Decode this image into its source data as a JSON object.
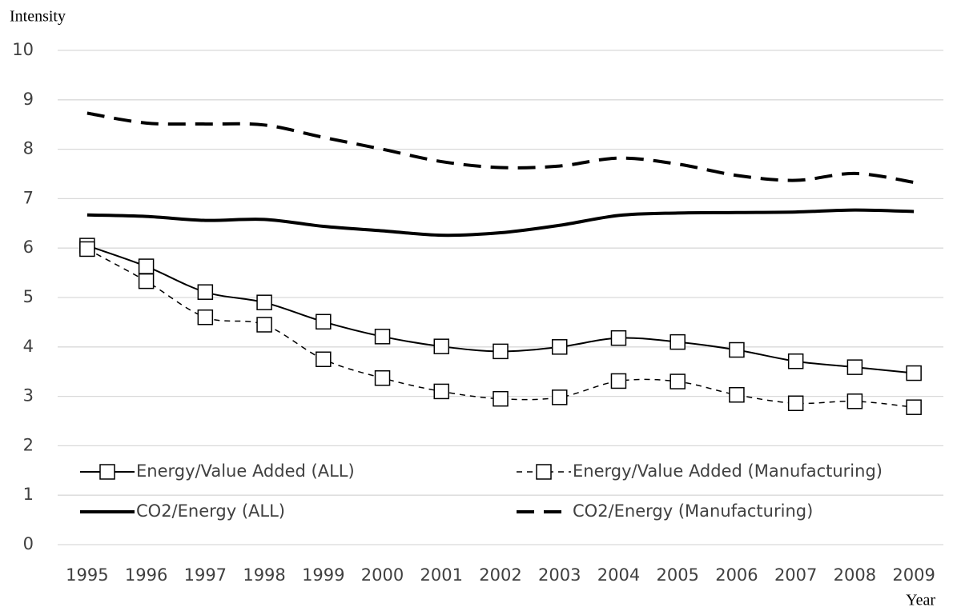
{
  "chart_data": {
    "type": "line",
    "ylabel": "Intensity",
    "xlabel": "Year",
    "categories": [
      "1995",
      "1996",
      "1997",
      "1998",
      "1999",
      "2000",
      "2001",
      "2002",
      "2003",
      "2004",
      "2005",
      "2006",
      "2007",
      "2008",
      "2009"
    ],
    "ylim": [
      0,
      10
    ],
    "yticks": [
      0,
      1,
      2,
      3,
      4,
      5,
      6,
      7,
      8,
      9,
      10
    ],
    "grid": true,
    "legend": "bottom",
    "series": [
      {
        "name": "Energy/Value Added (ALL)",
        "color": "#000000",
        "line_style": "solid",
        "marker": "square",
        "line_width": 2,
        "values": [
          6.05,
          5.63,
          5.11,
          4.9,
          4.51,
          4.21,
          4.01,
          3.91,
          4.0,
          4.18,
          4.1,
          3.94,
          3.71,
          3.59,
          3.47
        ]
      },
      {
        "name": "Energy/Value Added (Manufacturing)",
        "color": "#000000",
        "line_style": "dashed",
        "marker": "square",
        "line_width": 1.5,
        "values": [
          5.98,
          5.33,
          4.6,
          4.45,
          3.75,
          3.37,
          3.1,
          2.95,
          2.98,
          3.31,
          3.3,
          3.03,
          2.86,
          2.9,
          2.78
        ]
      },
      {
        "name": "CO2/Energy (ALL)",
        "color": "#000000",
        "line_style": "solid",
        "marker": null,
        "line_width": 4,
        "values": [
          6.67,
          6.64,
          6.56,
          6.58,
          6.44,
          6.35,
          6.26,
          6.31,
          6.46,
          6.66,
          6.71,
          6.72,
          6.73,
          6.77,
          6.74
        ]
      },
      {
        "name": "CO2/Energy (Manufacturing)",
        "color": "#000000",
        "line_style": "dashed",
        "marker": null,
        "line_width": 4,
        "values": [
          8.73,
          8.53,
          8.51,
          8.49,
          8.24,
          8.0,
          7.75,
          7.63,
          7.66,
          7.82,
          7.7,
          7.47,
          7.37,
          7.51,
          7.33
        ]
      }
    ]
  }
}
